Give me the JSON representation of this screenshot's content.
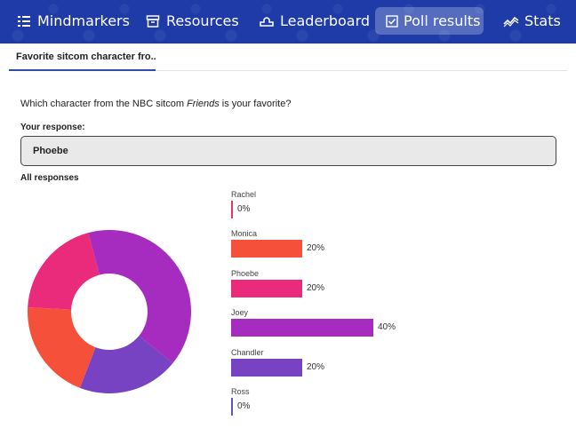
{
  "nav": {
    "items": [
      {
        "label": "Mindmarkers",
        "icon": "list-icon"
      },
      {
        "label": "Resources",
        "icon": "archive-icon"
      },
      {
        "label": "Leaderboard",
        "icon": "podium-icon"
      },
      {
        "label": "Poll results",
        "icon": "checkbox-icon",
        "active": true
      },
      {
        "label": "Stats",
        "icon": "trend-icon"
      }
    ],
    "bg_color": "#1e3ba8"
  },
  "tab": {
    "label": "Favorite sitcom character fro..."
  },
  "question": {
    "before": "Which character from the NBC sitcom ",
    "emphasis": "Friends",
    "after": " is your favorite?"
  },
  "your_response": {
    "label": "Your response:",
    "value": "Phoebe"
  },
  "all_responses": {
    "label": "All responses"
  },
  "chart_data": {
    "type": "bar",
    "categories": [
      "Rachel",
      "Monica",
      "Phoebe",
      "Joey",
      "Chandler",
      "Ross"
    ],
    "values": [
      0,
      20,
      20,
      40,
      20,
      0
    ],
    "value_labels": [
      "0%",
      "20%",
      "20%",
      "40%",
      "20%",
      "0%"
    ],
    "colors": [
      "#e8345f",
      "#f4503a",
      "#ea2a7a",
      "#a62bbf",
      "#7843c2",
      "#6a52c4"
    ],
    "unit": "%",
    "also_shown_as": "donut"
  }
}
